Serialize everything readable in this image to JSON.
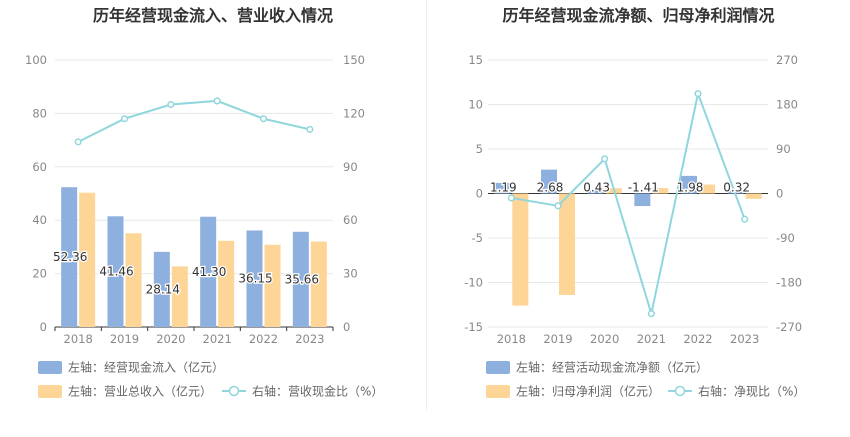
{
  "chart_data": [
    {
      "type": "bar",
      "title": "历年经营现金流入、营业收入情况",
      "categories": [
        "2018",
        "2019",
        "2020",
        "2021",
        "2022",
        "2023"
      ],
      "ylim_left": [
        0,
        100
      ],
      "ylim_right": [
        0,
        150
      ],
      "y_ticks_left": [
        "0",
        "20",
        "40",
        "60",
        "80",
        "100"
      ],
      "y_ticks_right": [
        "0",
        "30",
        "60",
        "90",
        "120",
        "150"
      ],
      "series": [
        {
          "name": "左轴：经营现金流入（亿元）",
          "kind": "bar",
          "axis": "left",
          "color": "#8eb0de",
          "values": [
            52.36,
            41.46,
            28.14,
            41.3,
            36.15,
            35.66
          ],
          "labels": [
            "52.36",
            "41.46",
            "28.14",
            "41.30",
            "36.15",
            "35.66"
          ]
        },
        {
          "name": "左轴：营业总收入（亿元）",
          "kind": "bar",
          "axis": "left",
          "color": "#fdd597",
          "values": [
            50.3,
            35.1,
            22.7,
            32.3,
            30.8,
            32.0
          ]
        },
        {
          "name": "右轴：营收现金比（%）",
          "kind": "line",
          "axis": "right",
          "color": "#8fd6dd",
          "values": [
            104,
            117,
            125,
            127,
            117,
            111
          ]
        }
      ]
    },
    {
      "type": "bar",
      "title": "历年经营现金流净额、归母净利润情况",
      "categories": [
        "2018",
        "2019",
        "2020",
        "2021",
        "2022",
        "2023"
      ],
      "ylim_left": [
        -15,
        15
      ],
      "ylim_right": [
        -270,
        270
      ],
      "y_ticks_left": [
        "-15",
        "-10",
        "-5",
        "0",
        "5",
        "10",
        "15"
      ],
      "y_ticks_right": [
        "-270",
        "-180",
        "-90",
        "0",
        "90",
        "180",
        "270"
      ],
      "series": [
        {
          "name": "左轴：经营活动现金流净额（亿元）",
          "kind": "bar",
          "axis": "left",
          "color": "#8eb0de",
          "values": [
            1.19,
            2.68,
            0.43,
            -1.41,
            1.98,
            0.32
          ],
          "labels": [
            "1.19",
            "2.68",
            "0.43",
            "-1.41",
            "1.98",
            "0.32"
          ]
        },
        {
          "name": "左轴：归母净利润（亿元）",
          "kind": "bar",
          "axis": "left",
          "color": "#fdd597",
          "values": [
            -12.6,
            -11.4,
            0.6,
            0.6,
            1.0,
            -0.6
          ]
        },
        {
          "name": "右轴：净现比（%）",
          "kind": "line",
          "axis": "right",
          "color": "#8fd6dd",
          "values": [
            -9,
            -25,
            70,
            -243,
            202,
            -52
          ]
        }
      ]
    }
  ]
}
